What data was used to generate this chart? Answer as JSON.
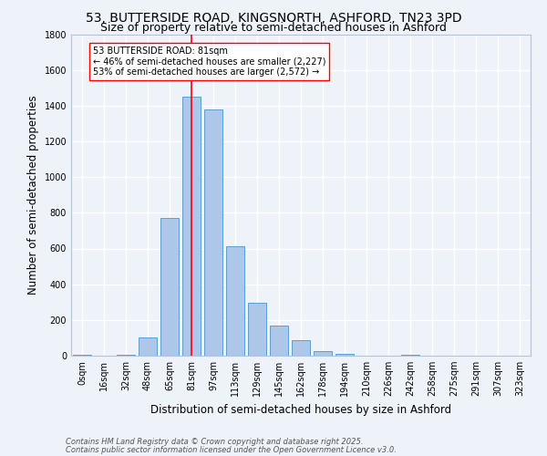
{
  "title_line1": "53, BUTTERSIDE ROAD, KINGSNORTH, ASHFORD, TN23 3PD",
  "title_line2": "Size of property relative to semi-detached houses in Ashford",
  "xlabel": "Distribution of semi-detached houses by size in Ashford",
  "ylabel": "Number of semi-detached properties",
  "bin_labels": [
    "0sqm",
    "16sqm",
    "32sqm",
    "48sqm",
    "65sqm",
    "81sqm",
    "97sqm",
    "113sqm",
    "129sqm",
    "145sqm",
    "162sqm",
    "178sqm",
    "194sqm",
    "210sqm",
    "226sqm",
    "242sqm",
    "258sqm",
    "275sqm",
    "291sqm",
    "307sqm",
    "323sqm"
  ],
  "bar_values": [
    5,
    0,
    5,
    100,
    770,
    1450,
    1380,
    615,
    295,
    170,
    85,
    28,
    12,
    0,
    0,
    5,
    0,
    0,
    0,
    0,
    0
  ],
  "bar_color": "#aec6e8",
  "bar_edge_color": "#5a9fd4",
  "red_line_index": 5,
  "ylim": [
    0,
    1800
  ],
  "yticks": [
    0,
    200,
    400,
    600,
    800,
    1000,
    1200,
    1400,
    1600,
    1800
  ],
  "annotation_title": "53 BUTTERSIDE ROAD: 81sqm",
  "annotation_line1": "← 46% of semi-detached houses are smaller (2,227)",
  "annotation_line2": "53% of semi-detached houses are larger (2,572) →",
  "footnote1": "Contains HM Land Registry data © Crown copyright and database right 2025.",
  "footnote2": "Contains public sector information licensed under the Open Government Licence v3.0.",
  "bg_color": "#eef2f9",
  "grid_color": "#ffffff",
  "title_fontsize": 10,
  "subtitle_fontsize": 9,
  "axis_label_fontsize": 8.5,
  "tick_fontsize": 7,
  "footnote_fontsize": 6,
  "annot_fontsize": 7
}
